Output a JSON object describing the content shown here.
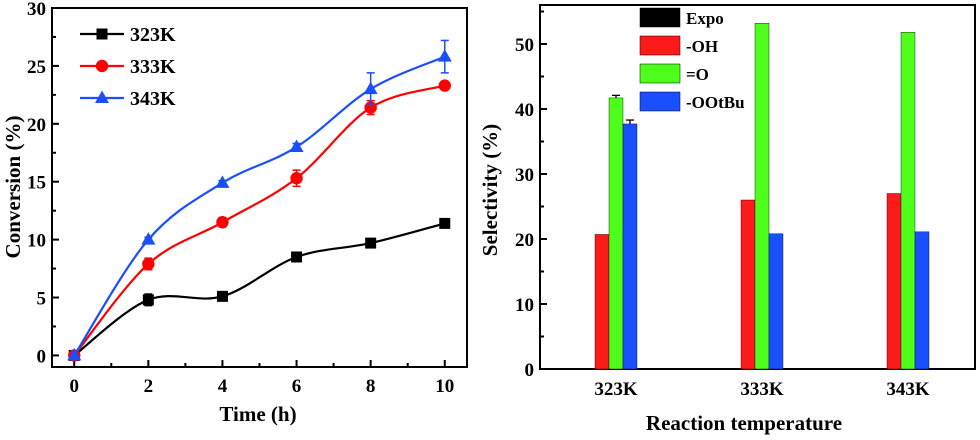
{
  "chart_data": [
    {
      "type": "line",
      "xlabel": "Time (h)",
      "ylabel": "Conversion (%)",
      "x": [
        0,
        2,
        4,
        6,
        8,
        10
      ],
      "xlim": [
        -0.6,
        10.6
      ],
      "ylim": [
        -1,
        30
      ],
      "xticks": [
        "0",
        "2",
        "4",
        "6",
        "8",
        "10"
      ],
      "yticks": [
        "0",
        "5",
        "10",
        "15",
        "20",
        "25",
        "30"
      ],
      "legend_position": "top-left",
      "series": [
        {
          "name": "323K",
          "marker": "square",
          "color": "#000000",
          "values": [
            0.0,
            4.8,
            5.1,
            8.5,
            9.7,
            11.4
          ],
          "errors": [
            0,
            0.5,
            0.2,
            0.2,
            0.2,
            0.2
          ]
        },
        {
          "name": "333K",
          "marker": "circle",
          "color": "#ff0000",
          "values": [
            0.0,
            7.9,
            11.5,
            15.3,
            21.4,
            23.3
          ],
          "errors": [
            0,
            0.5,
            0.4,
            0.7,
            0.6,
            0.3
          ]
        },
        {
          "name": "343K",
          "marker": "triangle",
          "color": "#1a4fff",
          "values": [
            0.0,
            10.0,
            14.9,
            18.0,
            23.0,
            25.8
          ],
          "errors": [
            0,
            0.2,
            0.2,
            0.3,
            1.4,
            1.4
          ]
        }
      ]
    },
    {
      "type": "bar",
      "xlabel": "Reaction temperature",
      "ylabel": "Selectivity (%)",
      "categories": [
        "323K",
        "333K",
        "343K"
      ],
      "ylim": [
        0,
        56
      ],
      "yticks": [
        "0",
        "10",
        "20",
        "30",
        "40",
        "50"
      ],
      "legend_position": "top-left",
      "series": [
        {
          "name": "Expo",
          "color": "#000000",
          "values": [
            0,
            0,
            0
          ]
        },
        {
          "name": "-OH",
          "color": "#ff1a1a",
          "values": [
            20.7,
            26.0,
            27.0
          ]
        },
        {
          "name": "=O",
          "color": "#4dff1a",
          "values": [
            41.7,
            53.2,
            51.8
          ]
        },
        {
          "name": "-OOtBu",
          "color": "#1a4fff",
          "values": [
            37.7,
            20.8,
            21.1
          ]
        }
      ],
      "errors": {
        "=O": [
          0.4,
          0,
          0
        ],
        "-OOtBu": [
          0.6,
          0,
          0
        ]
      }
    }
  ]
}
